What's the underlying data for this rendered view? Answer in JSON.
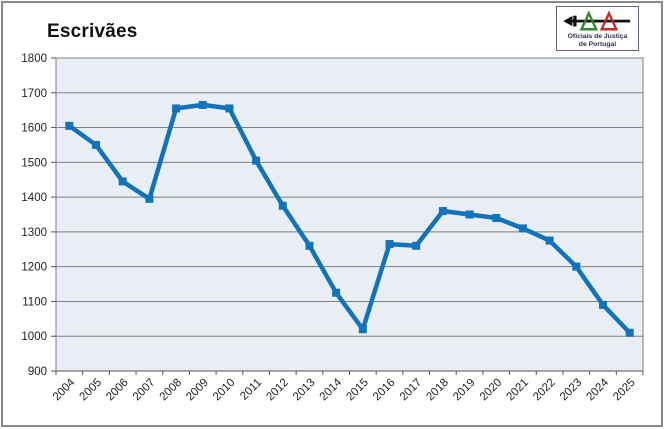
{
  "title": "Escrivães",
  "logo": {
    "line1": "Oficiais de Justiça",
    "line2": "de Portugal"
  },
  "colors": {
    "line": "#1173B9",
    "marker": "#1173B9",
    "plot_bg": "#E9EDF4",
    "gridline": "#808080",
    "axis": "#555555",
    "label_text": "#1f1f1f",
    "frame_border": "#8a8a8a",
    "logo_green": "#2E8B2E",
    "logo_red": "#C52B2B",
    "logo_black": "#111111"
  },
  "chart_data": {
    "type": "line",
    "title": "Escrivães",
    "categories": [
      "2004",
      "2005",
      "2006",
      "2007",
      "2008",
      "2009",
      "2010",
      "2011",
      "2012",
      "2013",
      "2014",
      "2015",
      "2016",
      "2017",
      "2018",
      "2019",
      "2020",
      "2021",
      "2022",
      "2023",
      "2024",
      "2025"
    ],
    "series": [
      {
        "name": "Escrivães",
        "values": [
          1605,
          1550,
          1445,
          1395,
          1655,
          1665,
          1655,
          1505,
          1375,
          1260,
          1125,
          1020,
          1265,
          1260,
          1360,
          1350,
          1340,
          1310,
          1275,
          1200,
          1090,
          1010
        ]
      }
    ],
    "xlabel": "",
    "ylabel": "",
    "ylim": [
      900,
      1800
    ],
    "yticks": [
      1800,
      1700,
      1600,
      1500,
      1400,
      1300,
      1200,
      1100,
      1000,
      900
    ],
    "ytick_step": 100,
    "grid": true,
    "legend": "none",
    "marker": "square",
    "x_label_rotation": -45
  }
}
